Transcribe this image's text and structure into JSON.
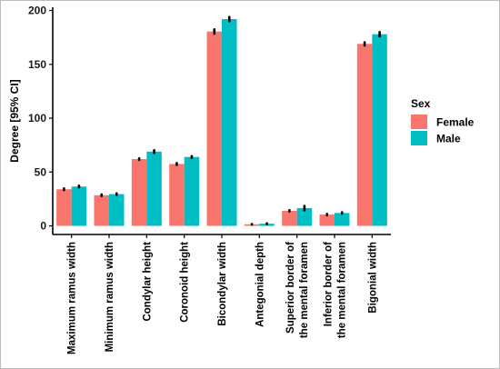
{
  "chart_data": {
    "type": "bar",
    "ylabel": "Degree [95% CI]",
    "xlabel": "",
    "ylim": [
      -8,
      203
    ],
    "yticks": [
      0,
      50,
      100,
      150,
      200
    ],
    "grid": false,
    "legend_position": "right",
    "legend_title": "Sex",
    "categories": [
      [
        "Maximum ramus width"
      ],
      [
        "Minimum ramus width"
      ],
      [
        "Condylar height"
      ],
      [
        "Coronoid height"
      ],
      [
        "Bicondylar width"
      ],
      [
        "Antegonial depth"
      ],
      [
        "Superior border of",
        "the mental foramen"
      ],
      [
        "Inferior border of",
        "the mental foramen"
      ],
      [
        "Bigonial width"
      ]
    ],
    "series": [
      {
        "name": "Female",
        "color": "#f8766d",
        "values": [
          34,
          28.5,
          62,
          57.5,
          180.5,
          1.5,
          14,
          10.5,
          169
        ],
        "ci_low": [
          33.2,
          27.8,
          61.2,
          56.7,
          178.5,
          1.2,
          13.4,
          9.9,
          167.5
        ],
        "ci_high": [
          34.8,
          29.2,
          62.8,
          58.3,
          182.5,
          1.8,
          14.6,
          11.1,
          170.5
        ]
      },
      {
        "name": "Male",
        "color": "#00bfc4",
        "values": [
          36.5,
          29.5,
          69,
          64,
          192,
          2,
          16.5,
          12,
          178
        ],
        "ci_low": [
          35.7,
          28.8,
          67.8,
          63.2,
          190,
          1.6,
          14.5,
          11.4,
          176
        ],
        "ci_high": [
          37.3,
          30.2,
          70.2,
          64.8,
          194,
          2.4,
          18.5,
          12.6,
          180
        ]
      }
    ]
  }
}
